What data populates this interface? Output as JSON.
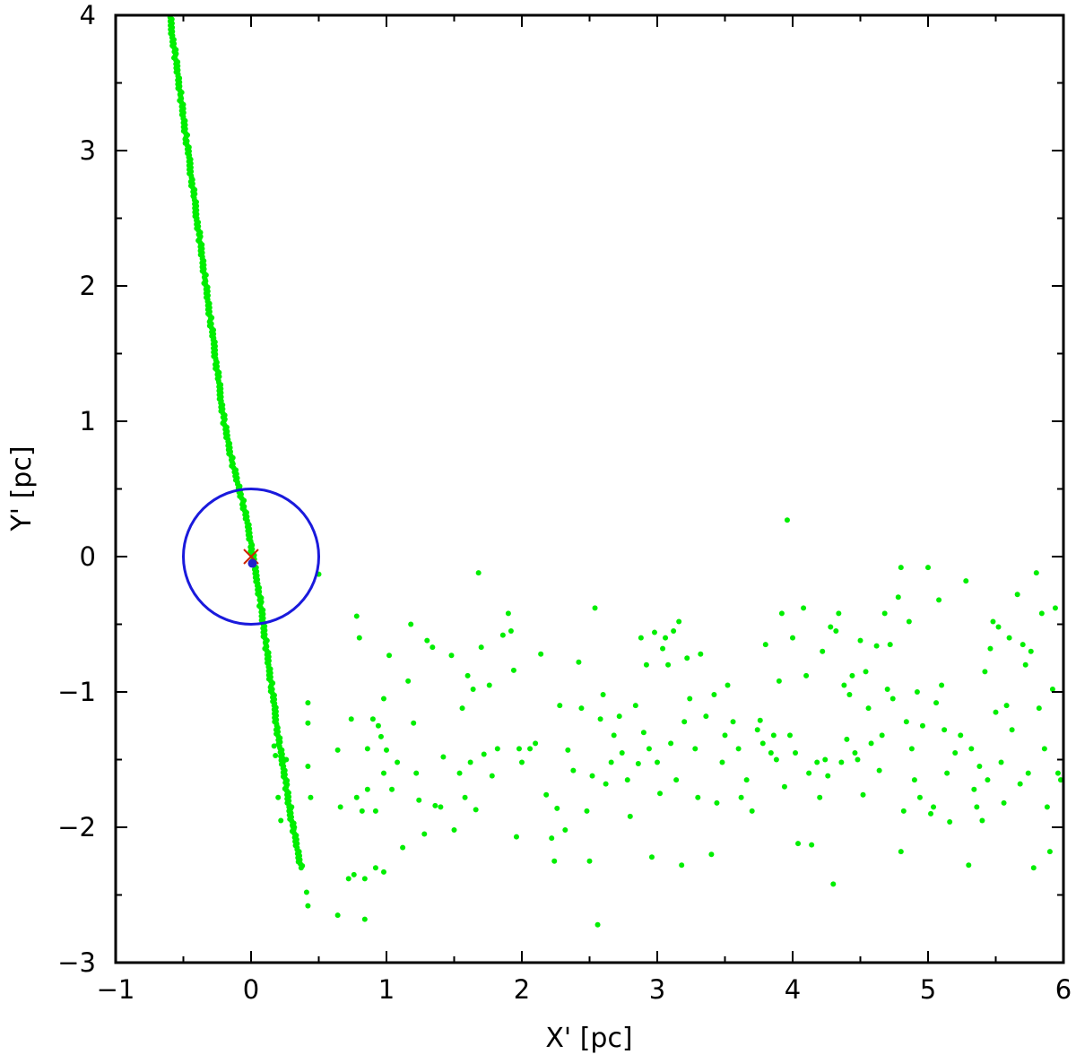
{
  "chart_data": {
    "type": "scatter",
    "title": "",
    "xlabel": "X' [pc]",
    "ylabel": "Y' [pc]",
    "xlim": [
      -1,
      6
    ],
    "ylim": [
      -3,
      4
    ],
    "xticks": [
      -1,
      0,
      1,
      2,
      3,
      4,
      5,
      6
    ],
    "yticks": [
      -3,
      -2,
      -1,
      0,
      1,
      2,
      3,
      4
    ],
    "xtick_labels": [
      "−1",
      "0",
      "1",
      "2",
      "3",
      "4",
      "5",
      "6"
    ],
    "ytick_labels": [
      "−3",
      "−2",
      "−1",
      "0",
      "1",
      "2",
      "3",
      "4"
    ],
    "grid": false,
    "colors": {
      "stream": "#00ee00",
      "circle": "#1a1adc",
      "marker": "#cc2200",
      "center": "#2222cc"
    },
    "series": [
      {
        "kind": "tidal-stream",
        "points": [
          [
            -0.6,
            4.0
          ],
          [
            -0.58,
            3.85
          ],
          [
            -0.56,
            3.7
          ],
          [
            -0.54,
            3.55
          ],
          [
            -0.52,
            3.4
          ],
          [
            -0.5,
            3.25
          ],
          [
            -0.48,
            3.1
          ],
          [
            -0.46,
            2.95
          ],
          [
            -0.44,
            2.8
          ],
          [
            -0.42,
            2.65
          ],
          [
            -0.4,
            2.5
          ],
          [
            -0.38,
            2.35
          ],
          [
            -0.36,
            2.2
          ],
          [
            -0.34,
            2.05
          ],
          [
            -0.32,
            1.9
          ],
          [
            -0.3,
            1.75
          ],
          [
            -0.28,
            1.6
          ],
          [
            -0.26,
            1.45
          ],
          [
            -0.24,
            1.3
          ],
          [
            -0.22,
            1.15
          ],
          [
            -0.2,
            1.0
          ],
          [
            -0.17,
            0.85
          ],
          [
            -0.14,
            0.7
          ],
          [
            -0.1,
            0.55
          ],
          [
            -0.06,
            0.4
          ],
          [
            -0.03,
            0.25
          ],
          [
            0.0,
            0.1
          ],
          [
            0.02,
            -0.05
          ],
          [
            0.05,
            -0.2
          ],
          [
            0.07,
            -0.35
          ],
          [
            0.09,
            -0.5
          ],
          [
            0.11,
            -0.65
          ],
          [
            0.13,
            -0.8
          ],
          [
            0.15,
            -0.95
          ],
          [
            0.17,
            -1.1
          ],
          [
            0.19,
            -1.25
          ],
          [
            0.21,
            -1.4
          ],
          [
            0.24,
            -1.55
          ],
          [
            0.26,
            -1.7
          ],
          [
            0.28,
            -1.85
          ],
          [
            0.31,
            -2.0
          ],
          [
            0.34,
            -2.15
          ],
          [
            0.37,
            -2.3
          ]
        ]
      },
      {
        "kind": "scattered-stars",
        "points": [
          [
            0.17,
            -1.4
          ],
          [
            0.18,
            -1.47
          ],
          [
            0.2,
            -1.78
          ],
          [
            0.22,
            -1.95
          ],
          [
            0.24,
            -1.6
          ],
          [
            0.26,
            -1.5
          ],
          [
            0.3,
            -1.85
          ],
          [
            0.32,
            -2.0
          ],
          [
            0.41,
            -2.48
          ],
          [
            0.42,
            -2.58
          ],
          [
            0.42,
            -1.08
          ],
          [
            0.42,
            -1.23
          ],
          [
            0.42,
            -1.55
          ],
          [
            0.44,
            -1.78
          ],
          [
            0.5,
            -0.13
          ],
          [
            0.64,
            -2.65
          ],
          [
            0.64,
            -1.43
          ],
          [
            0.66,
            -1.85
          ],
          [
            0.72,
            -2.38
          ],
          [
            0.74,
            -1.2
          ],
          [
            0.76,
            -2.35
          ],
          [
            0.78,
            -0.44
          ],
          [
            0.78,
            -1.78
          ],
          [
            0.8,
            -0.6
          ],
          [
            0.82,
            -1.88
          ],
          [
            0.84,
            -2.68
          ],
          [
            0.84,
            -2.38
          ],
          [
            0.86,
            -1.42
          ],
          [
            0.86,
            -1.72
          ],
          [
            0.9,
            -1.2
          ],
          [
            0.92,
            -1.88
          ],
          [
            0.92,
            -2.3
          ],
          [
            0.94,
            -1.25
          ],
          [
            0.96,
            -1.33
          ],
          [
            0.98,
            -2.33
          ],
          [
            0.98,
            -1.6
          ],
          [
            1.0,
            -1.43
          ],
          [
            0.98,
            -1.05
          ],
          [
            1.02,
            -0.73
          ],
          [
            1.04,
            -1.72
          ],
          [
            1.08,
            -1.52
          ],
          [
            1.12,
            -2.15
          ],
          [
            1.16,
            -0.92
          ],
          [
            1.18,
            -0.5
          ],
          [
            1.2,
            -1.23
          ],
          [
            1.22,
            -1.6
          ],
          [
            1.24,
            -1.8
          ],
          [
            1.28,
            -2.05
          ],
          [
            1.3,
            -0.62
          ],
          [
            1.34,
            -0.67
          ],
          [
            1.36,
            -1.84
          ],
          [
            1.4,
            -1.85
          ],
          [
            1.42,
            -1.48
          ],
          [
            1.48,
            -0.73
          ],
          [
            1.5,
            -2.02
          ],
          [
            1.54,
            -1.6
          ],
          [
            1.56,
            -1.12
          ],
          [
            1.58,
            -1.78
          ],
          [
            1.6,
            -0.88
          ],
          [
            1.62,
            -1.52
          ],
          [
            1.64,
            -0.98
          ],
          [
            1.66,
            -1.87
          ],
          [
            1.68,
            -0.12
          ],
          [
            1.7,
            -0.67
          ],
          [
            1.72,
            -1.46
          ],
          [
            1.76,
            -0.95
          ],
          [
            1.78,
            -1.62
          ],
          [
            1.82,
            -1.42
          ],
          [
            1.86,
            -0.58
          ],
          [
            1.9,
            -0.42
          ],
          [
            1.92,
            -0.55
          ],
          [
            1.94,
            -0.84
          ],
          [
            1.96,
            -2.07
          ],
          [
            1.98,
            -1.42
          ],
          [
            2.0,
            -1.52
          ],
          [
            2.06,
            -1.42
          ],
          [
            2.1,
            -1.38
          ],
          [
            2.14,
            -0.72
          ],
          [
            2.18,
            -1.76
          ],
          [
            2.22,
            -2.08
          ],
          [
            2.24,
            -2.25
          ],
          [
            2.26,
            -1.86
          ],
          [
            2.28,
            -1.1
          ],
          [
            2.32,
            -2.02
          ],
          [
            2.34,
            -1.43
          ],
          [
            2.38,
            -1.58
          ],
          [
            2.42,
            -0.78
          ],
          [
            2.44,
            -1.12
          ],
          [
            2.48,
            -1.88
          ],
          [
            2.5,
            -2.25
          ],
          [
            2.52,
            -1.62
          ],
          [
            2.54,
            -0.38
          ],
          [
            2.56,
            -2.72
          ],
          [
            2.58,
            -1.2
          ],
          [
            2.6,
            -1.02
          ],
          [
            2.62,
            -1.68
          ],
          [
            2.66,
            -1.52
          ],
          [
            2.68,
            -1.32
          ],
          [
            2.72,
            -1.18
          ],
          [
            2.74,
            -1.45
          ],
          [
            2.78,
            -1.65
          ],
          [
            2.8,
            -1.92
          ],
          [
            2.84,
            -1.1
          ],
          [
            2.86,
            -1.53
          ],
          [
            2.88,
            -0.6
          ],
          [
            2.9,
            -1.3
          ],
          [
            2.92,
            -0.8
          ],
          [
            2.94,
            -1.42
          ],
          [
            2.96,
            -2.22
          ],
          [
            2.98,
            -0.56
          ],
          [
            3.0,
            -1.52
          ],
          [
            3.02,
            -1.75
          ],
          [
            3.04,
            -0.68
          ],
          [
            3.06,
            -0.6
          ],
          [
            3.08,
            -0.8
          ],
          [
            3.1,
            -1.38
          ],
          [
            3.12,
            -0.55
          ],
          [
            3.14,
            -1.65
          ],
          [
            3.16,
            -0.48
          ],
          [
            3.18,
            -2.28
          ],
          [
            3.2,
            -1.22
          ],
          [
            3.22,
            -0.75
          ],
          [
            3.24,
            -1.05
          ],
          [
            3.28,
            -1.42
          ],
          [
            3.3,
            -1.78
          ],
          [
            3.32,
            -0.72
          ],
          [
            3.36,
            -1.18
          ],
          [
            3.4,
            -2.2
          ],
          [
            3.42,
            -1.02
          ],
          [
            3.44,
            -1.82
          ],
          [
            3.48,
            -1.52
          ],
          [
            3.5,
            -1.32
          ],
          [
            3.52,
            -0.95
          ],
          [
            3.56,
            -1.22
          ],
          [
            3.6,
            -1.42
          ],
          [
            3.62,
            -1.78
          ],
          [
            3.66,
            -1.65
          ],
          [
            3.7,
            -1.88
          ],
          [
            3.74,
            -1.28
          ],
          [
            3.76,
            -1.21
          ],
          [
            3.78,
            -1.38
          ],
          [
            3.8,
            -0.65
          ],
          [
            3.84,
            -1.45
          ],
          [
            3.86,
            -1.32
          ],
          [
            3.88,
            -1.5
          ],
          [
            3.9,
            -0.92
          ],
          [
            3.92,
            -0.42
          ],
          [
            3.94,
            -1.7
          ],
          [
            3.96,
            0.27
          ],
          [
            3.98,
            -1.32
          ],
          [
            4.0,
            -0.6
          ],
          [
            4.02,
            -1.45
          ],
          [
            4.04,
            -2.12
          ],
          [
            4.08,
            -0.38
          ],
          [
            4.1,
            -0.88
          ],
          [
            4.12,
            -1.6
          ],
          [
            4.14,
            -2.13
          ],
          [
            4.18,
            -1.52
          ],
          [
            4.2,
            -1.78
          ],
          [
            4.22,
            -0.7
          ],
          [
            4.24,
            -1.5
          ],
          [
            4.26,
            -1.62
          ],
          [
            4.28,
            -0.52
          ],
          [
            4.3,
            -2.42
          ],
          [
            4.32,
            -0.55
          ],
          [
            4.34,
            -0.42
          ],
          [
            4.36,
            -1.52
          ],
          [
            4.38,
            -0.95
          ],
          [
            4.4,
            -1.35
          ],
          [
            4.42,
            -1.02
          ],
          [
            4.44,
            -0.88
          ],
          [
            4.46,
            -1.45
          ],
          [
            4.48,
            -1.5
          ],
          [
            4.5,
            -0.62
          ],
          [
            4.52,
            -1.76
          ],
          [
            4.54,
            -0.85
          ],
          [
            4.56,
            -1.12
          ],
          [
            4.58,
            -1.38
          ],
          [
            4.62,
            -0.66
          ],
          [
            4.64,
            -1.58
          ],
          [
            4.66,
            -1.32
          ],
          [
            4.68,
            -0.42
          ],
          [
            4.7,
            -0.98
          ],
          [
            4.72,
            -0.65
          ],
          [
            4.74,
            -1.05
          ],
          [
            4.78,
            -0.3
          ],
          [
            4.8,
            -0.08
          ],
          [
            4.8,
            -2.18
          ],
          [
            4.82,
            -1.88
          ],
          [
            4.84,
            -1.22
          ],
          [
            4.86,
            -0.48
          ],
          [
            4.88,
            -1.42
          ],
          [
            4.9,
            -1.65
          ],
          [
            4.92,
            -1.0
          ],
          [
            4.94,
            -1.78
          ],
          [
            4.96,
            -1.25
          ],
          [
            5.0,
            -0.08
          ],
          [
            5.02,
            -1.9
          ],
          [
            5.04,
            -1.85
          ],
          [
            5.06,
            -1.08
          ],
          [
            5.08,
            -0.32
          ],
          [
            5.1,
            -0.95
          ],
          [
            5.12,
            -1.28
          ],
          [
            5.14,
            -1.6
          ],
          [
            5.16,
            -1.96
          ],
          [
            5.2,
            -1.45
          ],
          [
            5.24,
            -1.32
          ],
          [
            5.28,
            -0.18
          ],
          [
            5.3,
            -2.28
          ],
          [
            5.32,
            -1.42
          ],
          [
            5.34,
            -1.72
          ],
          [
            5.36,
            -1.85
          ],
          [
            5.38,
            -1.55
          ],
          [
            5.4,
            -1.95
          ],
          [
            5.42,
            -0.85
          ],
          [
            5.44,
            -1.65
          ],
          [
            5.46,
            -0.68
          ],
          [
            5.48,
            -0.48
          ],
          [
            5.5,
            -1.15
          ],
          [
            5.52,
            -0.52
          ],
          [
            5.54,
            -1.52
          ],
          [
            5.56,
            -1.82
          ],
          [
            5.58,
            -1.1
          ],
          [
            5.6,
            -0.6
          ],
          [
            5.62,
            -1.28
          ],
          [
            5.66,
            -0.28
          ],
          [
            5.68,
            -1.68
          ],
          [
            5.7,
            -0.65
          ],
          [
            5.72,
            -0.8
          ],
          [
            5.74,
            -1.6
          ],
          [
            5.76,
            -0.7
          ],
          [
            5.78,
            -2.3
          ],
          [
            5.8,
            -0.12
          ],
          [
            5.82,
            -1.12
          ],
          [
            5.84,
            -0.42
          ],
          [
            5.86,
            -1.42
          ],
          [
            5.88,
            -1.85
          ],
          [
            5.9,
            -2.18
          ],
          [
            5.92,
            -0.98
          ],
          [
            5.94,
            -0.38
          ],
          [
            5.96,
            -1.6
          ],
          [
            5.98,
            -1.65
          ]
        ]
      }
    ],
    "annotations": {
      "circle": {
        "center": [
          0,
          0
        ],
        "radius": 0.5
      },
      "cross": [
        0,
        0
      ],
      "center_dot": [
        0.01,
        -0.05
      ]
    }
  }
}
